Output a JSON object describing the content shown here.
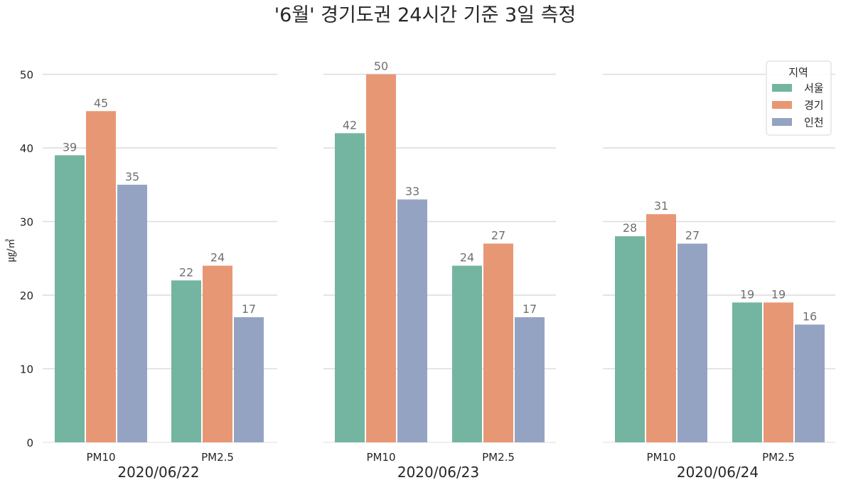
{
  "chart_data": {
    "type": "bar",
    "title": "'6월' 경기도권 24시간 기준 3일 측정",
    "ylabel": "㎍/㎥",
    "ylim": [
      0,
      52
    ],
    "yticks": [
      "0",
      "10",
      "20",
      "30",
      "40",
      "50"
    ],
    "grid": true,
    "legend": {
      "title": "지역",
      "placement": "top-right",
      "entries": [
        "서울",
        "경기",
        "인천"
      ]
    },
    "colors": [
      "#73b5a1",
      "#e89774",
      "#95a3c2"
    ],
    "categories": [
      "PM10",
      "PM2.5"
    ],
    "panels": [
      {
        "xlabel": "2020/06/22",
        "series": [
          {
            "name": "서울",
            "values": [
              39,
              22
            ]
          },
          {
            "name": "경기",
            "values": [
              45,
              24
            ]
          },
          {
            "name": "인천",
            "values": [
              35,
              17
            ]
          }
        ]
      },
      {
        "xlabel": "2020/06/23",
        "series": [
          {
            "name": "서울",
            "values": [
              42,
              24
            ]
          },
          {
            "name": "경기",
            "values": [
              50,
              27
            ]
          },
          {
            "name": "인천",
            "values": [
              33,
              17
            ]
          }
        ]
      },
      {
        "xlabel": "2020/06/24",
        "series": [
          {
            "name": "서울",
            "values": [
              28,
              19
            ]
          },
          {
            "name": "경기",
            "values": [
              31,
              19
            ]
          },
          {
            "name": "인천",
            "values": [
              27,
              16
            ]
          }
        ]
      }
    ]
  }
}
